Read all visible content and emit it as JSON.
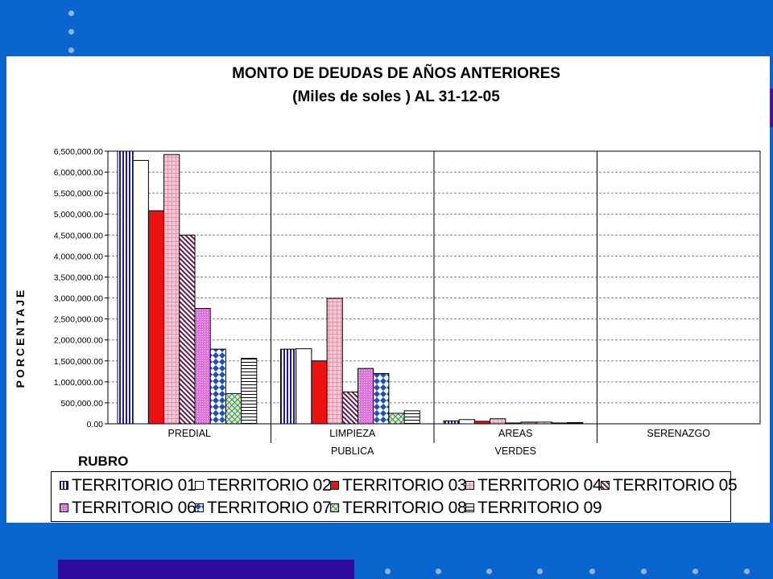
{
  "chart_data": {
    "type": "bar",
    "title": "MONTO DE DEUDAS DE AÑOS ANTERIORES",
    "subtitle": "(Miles de soles )  AL 31-12-05",
    "xlabel": "RUBRO",
    "ylabel": "PORCENTAJE",
    "ylim": [
      0,
      6500000
    ],
    "y_ticks": [
      "0.00",
      "500,000.00",
      "1,000,000.00",
      "1,500,000.00",
      "2,000,000.00",
      "2,500,000.00",
      "3,000,000.00",
      "3,500,000.00",
      "4,000,000.00",
      "4,500,000.00",
      "5,000,000.00",
      "5,500,000.00",
      "6,000,000.00",
      "6,500,000.00"
    ],
    "categories": [
      {
        "line1": "PREDIAL",
        "line2": ""
      },
      {
        "line1": "LIMPIEZA",
        "line2": "PUBLICA"
      },
      {
        "line1": "AREAS",
        "line2": "VERDES"
      },
      {
        "line1": "SERENAZGO",
        "line2": ""
      }
    ],
    "grid": true,
    "legend_position": "bottom",
    "series": [
      {
        "name": "TERRITORIO 01",
        "pattern": "vertical-stripes",
        "color": "#1a1aa0",
        "values": [
          6500000,
          1780000,
          70000,
          0
        ]
      },
      {
        "name": "TERRITORIO 02",
        "pattern": "solid",
        "color": "#ffffff",
        "values": [
          6280000,
          1790000,
          100000,
          0
        ]
      },
      {
        "name": "TERRITORIO 03",
        "pattern": "solid",
        "color": "#ee1111",
        "values": [
          5080000,
          1500000,
          60000,
          0
        ]
      },
      {
        "name": "TERRITORIO 04",
        "pattern": "grid",
        "color": "#f0a0b8",
        "values": [
          6420000,
          2990000,
          120000,
          0
        ]
      },
      {
        "name": "TERRITORIO 05",
        "pattern": "diagonal",
        "color": "#7a1a5a",
        "values": [
          4500000,
          760000,
          20000,
          0
        ]
      },
      {
        "name": "TERRITORIO 06",
        "pattern": "dots",
        "color": "#e080e0",
        "values": [
          2750000,
          1320000,
          40000,
          0
        ]
      },
      {
        "name": "TERRITORIO 07",
        "pattern": "diamonds",
        "color": "#1a50c0",
        "values": [
          1780000,
          1200000,
          40000,
          0
        ]
      },
      {
        "name": "TERRITORIO 08",
        "pattern": "crosshatch",
        "color": "#88c088",
        "values": [
          720000,
          250000,
          20000,
          0
        ]
      },
      {
        "name": "TERRITORIO 09",
        "pattern": "horizontal-stripes",
        "color": "#000000",
        "values": [
          1560000,
          310000,
          30000,
          0
        ]
      }
    ]
  }
}
